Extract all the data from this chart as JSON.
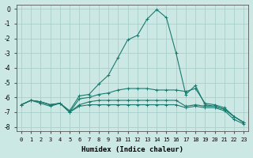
{
  "xlabel": "Humidex (Indice chaleur)",
  "background_color": "#cce8e4",
  "grid_color": "#aacfcb",
  "line_color": "#1a7a6e",
  "xlim": [
    -0.5,
    23.5
  ],
  "ylim": [
    -8.3,
    0.3
  ],
  "xticks": [
    0,
    1,
    2,
    3,
    4,
    5,
    6,
    7,
    8,
    9,
    10,
    11,
    12,
    13,
    14,
    15,
    16,
    17,
    18,
    19,
    20,
    21,
    22,
    23
  ],
  "yticks": [
    0,
    -1,
    -2,
    -3,
    -4,
    -5,
    -6,
    -7,
    -8
  ],
  "series": [
    {
      "points": [
        [
          0,
          -6.5
        ],
        [
          1,
          -6.2
        ],
        [
          2,
          -6.3
        ],
        [
          3,
          -6.5
        ],
        [
          4,
          -6.4
        ],
        [
          5,
          -6.9
        ],
        [
          6,
          -5.9
        ],
        [
          7,
          -5.8
        ],
        [
          8,
          -5.1
        ],
        [
          9,
          -4.5
        ],
        [
          10,
          -3.3
        ],
        [
          11,
          -2.1
        ],
        [
          12,
          -1.8
        ],
        [
          13,
          -0.7
        ],
        [
          14,
          -0.05
        ],
        [
          15,
          -0.6
        ],
        [
          16,
          -3.0
        ],
        [
          17,
          -5.8
        ],
        [
          18,
          -5.2
        ],
        [
          19,
          -6.5
        ],
        [
          20,
          -6.6
        ],
        [
          21,
          -6.8
        ],
        [
          22,
          -7.3
        ],
        [
          23,
          -7.7
        ]
      ]
    },
    {
      "points": [
        [
          0,
          -6.5
        ],
        [
          1,
          -6.2
        ],
        [
          2,
          -6.3
        ],
        [
          3,
          -6.5
        ],
        [
          4,
          -6.4
        ],
        [
          5,
          -7.0
        ],
        [
          6,
          -6.1
        ],
        [
          7,
          -6.0
        ],
        [
          8,
          -5.8
        ],
        [
          9,
          -5.7
        ],
        [
          10,
          -5.5
        ],
        [
          11,
          -5.4
        ],
        [
          12,
          -5.4
        ],
        [
          13,
          -5.4
        ],
        [
          14,
          -5.5
        ],
        [
          15,
          -5.5
        ],
        [
          16,
          -5.5
        ],
        [
          17,
          -5.6
        ],
        [
          18,
          -5.4
        ],
        [
          19,
          -6.4
        ],
        [
          20,
          -6.5
        ],
        [
          21,
          -6.7
        ],
        [
          22,
          -7.3
        ],
        [
          23,
          -7.7
        ]
      ]
    },
    {
      "points": [
        [
          0,
          -6.5
        ],
        [
          1,
          -6.2
        ],
        [
          2,
          -6.4
        ],
        [
          3,
          -6.6
        ],
        [
          4,
          -6.4
        ],
        [
          5,
          -7.0
        ],
        [
          6,
          -6.5
        ],
        [
          7,
          -6.3
        ],
        [
          8,
          -6.2
        ],
        [
          9,
          -6.2
        ],
        [
          10,
          -6.2
        ],
        [
          11,
          -6.2
        ],
        [
          12,
          -6.2
        ],
        [
          13,
          -6.2
        ],
        [
          14,
          -6.2
        ],
        [
          15,
          -6.2
        ],
        [
          16,
          -6.2
        ],
        [
          17,
          -6.6
        ],
        [
          18,
          -6.5
        ],
        [
          19,
          -6.6
        ],
        [
          20,
          -6.6
        ],
        [
          21,
          -6.8
        ],
        [
          22,
          -7.3
        ],
        [
          23,
          -7.7
        ]
      ]
    },
    {
      "points": [
        [
          0,
          -6.5
        ],
        [
          1,
          -6.2
        ],
        [
          2,
          -6.3
        ],
        [
          3,
          -6.5
        ],
        [
          4,
          -6.4
        ],
        [
          5,
          -7.0
        ],
        [
          6,
          -6.6
        ],
        [
          7,
          -6.5
        ],
        [
          8,
          -6.5
        ],
        [
          9,
          -6.5
        ],
        [
          10,
          -6.5
        ],
        [
          11,
          -6.5
        ],
        [
          12,
          -6.5
        ],
        [
          13,
          -6.5
        ],
        [
          14,
          -6.5
        ],
        [
          15,
          -6.5
        ],
        [
          16,
          -6.5
        ],
        [
          17,
          -6.7
        ],
        [
          18,
          -6.6
        ],
        [
          19,
          -6.7
        ],
        [
          20,
          -6.7
        ],
        [
          21,
          -6.9
        ],
        [
          22,
          -7.5
        ],
        [
          23,
          -7.8
        ]
      ]
    }
  ]
}
